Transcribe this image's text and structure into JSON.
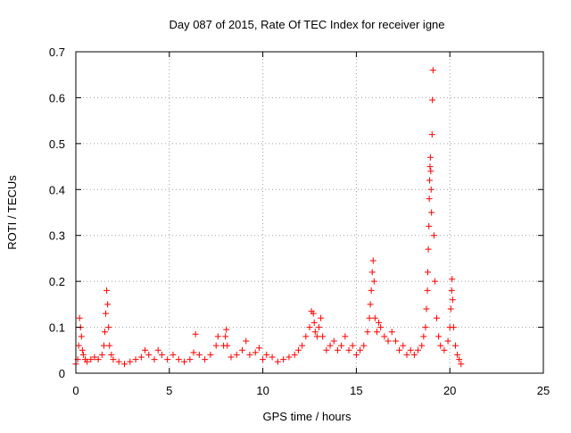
{
  "chart_data": {
    "type": "scatter",
    "title": "Day 087 of 2015, Rate Of TEC Index for receiver igne",
    "xlabel": "GPS time / hours",
    "ylabel": "ROTI / TECUs",
    "xlim": [
      0,
      25
    ],
    "ylim": [
      0,
      0.7
    ],
    "x_ticks": [
      0,
      5,
      10,
      15,
      20,
      25
    ],
    "x_tick_labels": [
      "0",
      "5",
      "10",
      "15",
      "20",
      "25"
    ],
    "y_ticks": [
      0,
      0.1,
      0.2,
      0.3,
      0.4,
      0.5,
      0.6,
      0.7
    ],
    "y_tick_labels": [
      "0",
      "0.1",
      "0.2",
      "0.3",
      "0.4",
      "0.5",
      "0.6",
      "0.7"
    ],
    "grid": true,
    "marker": "plus",
    "marker_color": "#ff0000",
    "series": [
      {
        "points": [
          [
            0.0,
            0.02
          ],
          [
            0.1,
            0.03
          ],
          [
            0.15,
            0.06
          ],
          [
            0.2,
            0.12
          ],
          [
            0.25,
            0.1
          ],
          [
            0.3,
            0.08
          ],
          [
            0.35,
            0.05
          ],
          [
            0.4,
            0.04
          ],
          [
            0.5,
            0.03
          ],
          [
            0.6,
            0.025
          ],
          [
            0.8,
            0.03
          ],
          [
            1.0,
            0.035
          ],
          [
            1.2,
            0.03
          ],
          [
            1.4,
            0.04
          ],
          [
            1.5,
            0.06
          ],
          [
            1.55,
            0.09
          ],
          [
            1.6,
            0.13
          ],
          [
            1.65,
            0.18
          ],
          [
            1.7,
            0.15
          ],
          [
            1.75,
            0.1
          ],
          [
            1.8,
            0.06
          ],
          [
            1.9,
            0.04
          ],
          [
            2.0,
            0.03
          ],
          [
            2.3,
            0.025
          ],
          [
            2.6,
            0.02
          ],
          [
            2.9,
            0.025
          ],
          [
            3.2,
            0.03
          ],
          [
            3.5,
            0.035
          ],
          [
            3.7,
            0.05
          ],
          [
            3.9,
            0.04
          ],
          [
            4.2,
            0.03
          ],
          [
            4.4,
            0.05
          ],
          [
            4.6,
            0.04
          ],
          [
            4.9,
            0.03
          ],
          [
            5.2,
            0.04
          ],
          [
            5.5,
            0.03
          ],
          [
            5.8,
            0.025
          ],
          [
            6.1,
            0.03
          ],
          [
            6.3,
            0.045
          ],
          [
            6.4,
            0.085
          ],
          [
            6.6,
            0.04
          ],
          [
            6.9,
            0.03
          ],
          [
            7.2,
            0.04
          ],
          [
            7.5,
            0.06
          ],
          [
            7.6,
            0.08
          ],
          [
            7.9,
            0.06
          ],
          [
            8.0,
            0.08
          ],
          [
            8.05,
            0.095
          ],
          [
            8.1,
            0.06
          ],
          [
            8.3,
            0.035
          ],
          [
            8.6,
            0.04
          ],
          [
            8.9,
            0.05
          ],
          [
            9.1,
            0.07
          ],
          [
            9.3,
            0.04
          ],
          [
            9.6,
            0.045
          ],
          [
            9.8,
            0.055
          ],
          [
            10.0,
            0.03
          ],
          [
            10.2,
            0.04
          ],
          [
            10.5,
            0.035
          ],
          [
            10.8,
            0.025
          ],
          [
            11.1,
            0.03
          ],
          [
            11.4,
            0.035
          ],
          [
            11.7,
            0.04
          ],
          [
            11.9,
            0.05
          ],
          [
            12.1,
            0.06
          ],
          [
            12.3,
            0.08
          ],
          [
            12.5,
            0.1
          ],
          [
            12.6,
            0.135
          ],
          [
            12.7,
            0.13
          ],
          [
            12.75,
            0.11
          ],
          [
            12.8,
            0.09
          ],
          [
            12.9,
            0.08
          ],
          [
            13.0,
            0.1
          ],
          [
            13.1,
            0.12
          ],
          [
            13.2,
            0.08
          ],
          [
            13.4,
            0.05
          ],
          [
            13.6,
            0.06
          ],
          [
            13.8,
            0.07
          ],
          [
            14.0,
            0.05
          ],
          [
            14.2,
            0.06
          ],
          [
            14.4,
            0.08
          ],
          [
            14.6,
            0.05
          ],
          [
            14.8,
            0.06
          ],
          [
            15.0,
            0.04
          ],
          [
            15.2,
            0.05
          ],
          [
            15.4,
            0.06
          ],
          [
            15.6,
            0.09
          ],
          [
            15.7,
            0.12
          ],
          [
            15.75,
            0.15
          ],
          [
            15.8,
            0.18
          ],
          [
            15.85,
            0.22
          ],
          [
            15.9,
            0.245
          ],
          [
            15.95,
            0.2
          ],
          [
            16.0,
            0.12
          ],
          [
            16.1,
            0.09
          ],
          [
            16.2,
            0.11
          ],
          [
            16.3,
            0.1
          ],
          [
            16.5,
            0.08
          ],
          [
            16.7,
            0.07
          ],
          [
            16.9,
            0.09
          ],
          [
            17.1,
            0.07
          ],
          [
            17.3,
            0.05
          ],
          [
            17.5,
            0.06
          ],
          [
            17.7,
            0.04
          ],
          [
            17.9,
            0.05
          ],
          [
            18.1,
            0.04
          ],
          [
            18.3,
            0.05
          ],
          [
            18.5,
            0.06
          ],
          [
            18.6,
            0.08
          ],
          [
            18.7,
            0.1
          ],
          [
            18.75,
            0.14
          ],
          [
            18.8,
            0.18
          ],
          [
            18.82,
            0.22
          ],
          [
            18.85,
            0.27
          ],
          [
            18.88,
            0.32
          ],
          [
            18.9,
            0.38
          ],
          [
            18.92,
            0.42
          ],
          [
            18.94,
            0.45
          ],
          [
            18.96,
            0.47
          ],
          [
            18.98,
            0.44
          ],
          [
            19.0,
            0.4
          ],
          [
            19.02,
            0.35
          ],
          [
            19.05,
            0.52
          ],
          [
            19.07,
            0.595
          ],
          [
            19.1,
            0.66
          ],
          [
            19.15,
            0.3
          ],
          [
            19.2,
            0.2
          ],
          [
            19.3,
            0.12
          ],
          [
            19.4,
            0.08
          ],
          [
            19.5,
            0.06
          ],
          [
            19.7,
            0.05
          ],
          [
            19.9,
            0.07
          ],
          [
            20.0,
            0.1
          ],
          [
            20.05,
            0.14
          ],
          [
            20.1,
            0.18
          ],
          [
            20.12,
            0.205
          ],
          [
            20.15,
            0.16
          ],
          [
            20.2,
            0.1
          ],
          [
            20.3,
            0.06
          ],
          [
            20.4,
            0.04
          ],
          [
            20.5,
            0.03
          ],
          [
            20.6,
            0.02
          ]
        ]
      }
    ]
  }
}
